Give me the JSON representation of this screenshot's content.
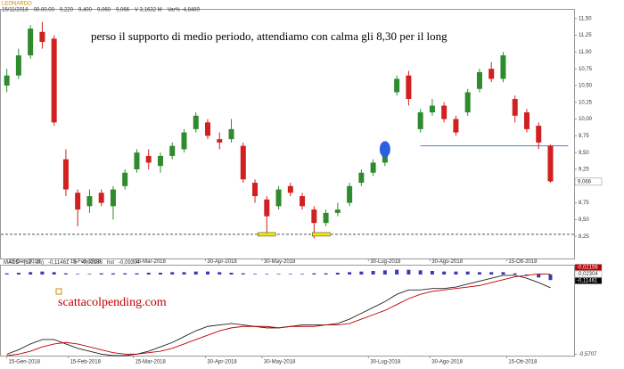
{
  "chart_data": {
    "type": "candlestick",
    "title": "LEONARDO",
    "header": [
      "15/11/2018",
      "00.00.00",
      "9,220",
      "9,400",
      "9,060",
      "9,066",
      "V 3,1632 M",
      "Var% -4,8489"
    ],
    "annotation": "perso il supporto di medio periodo, attendiamo con calma gli 8,30 per il long",
    "open": [
      10.5,
      10.65,
      10.95,
      11.3,
      11.2,
      9.4,
      8.9,
      8.7,
      8.9,
      8.7,
      9.0,
      9.25,
      9.45,
      9.3,
      9.45,
      9.55,
      9.85,
      9.95,
      9.7,
      9.7,
      9.6,
      9.05,
      8.8,
      8.7,
      9.0,
      8.85,
      8.65,
      8.45,
      8.6,
      8.75,
      9.05,
      9.2,
      9.35,
      10.4,
      10.65,
      9.85,
      10.1,
      10.2,
      10.0,
      10.1,
      10.45,
      10.75,
      10.6,
      10.3,
      10.1,
      9.9,
      9.6
    ],
    "close": [
      10.65,
      10.95,
      11.35,
      11.15,
      9.95,
      8.95,
      8.65,
      8.85,
      8.75,
      8.95,
      9.2,
      9.5,
      9.35,
      9.45,
      9.6,
      9.8,
      10.05,
      9.75,
      9.65,
      9.85,
      9.1,
      8.85,
      8.55,
      8.95,
      8.9,
      8.7,
      8.45,
      8.6,
      8.65,
      9.0,
      9.2,
      9.35,
      9.45,
      10.6,
      10.3,
      10.1,
      10.2,
      10.0,
      9.8,
      10.4,
      10.7,
      10.6,
      10.95,
      10.05,
      9.85,
      9.65,
      9.07
    ],
    "high": [
      10.75,
      11.05,
      11.4,
      11.45,
      11.25,
      9.55,
      8.95,
      8.95,
      8.95,
      9.0,
      9.25,
      9.55,
      9.55,
      9.5,
      9.65,
      9.85,
      10.1,
      10.0,
      9.8,
      10.0,
      9.65,
      9.1,
      8.85,
      9.0,
      9.05,
      8.9,
      8.7,
      8.65,
      8.75,
      9.05,
      9.25,
      9.4,
      9.55,
      10.65,
      10.72,
      10.15,
      10.3,
      10.25,
      10.05,
      10.45,
      10.75,
      10.85,
      11.0,
      10.35,
      10.15,
      9.95,
      9.62
    ],
    "low": [
      10.4,
      10.6,
      10.9,
      11.05,
      9.9,
      8.85,
      8.4,
      8.6,
      8.7,
      8.5,
      8.95,
      9.2,
      9.25,
      9.2,
      9.4,
      9.5,
      9.8,
      9.7,
      9.55,
      9.65,
      9.05,
      8.75,
      8.28,
      8.65,
      8.85,
      8.65,
      8.22,
      8.4,
      8.55,
      8.7,
      9.0,
      9.15,
      9.3,
      10.35,
      10.2,
      9.8,
      10.05,
      9.95,
      9.75,
      10.05,
      10.4,
      10.55,
      10.55,
      9.95,
      9.8,
      9.55,
      9.05
    ],
    "up_color": "#2e8b2e",
    "down_color": "#d02020",
    "xlim": [
      -0.5,
      48
    ],
    "xticks": [
      {
        "value": 0,
        "label": "15-Gen-2018"
      },
      {
        "value": 5.2,
        "label": "15-Feb-2018"
      },
      {
        "value": 10.7,
        "label": "15-Mar-2018"
      },
      {
        "value": 16.8,
        "label": "30-Apr-2018"
      },
      {
        "value": 21.6,
        "label": "30-May-2018"
      },
      {
        "value": 30.6,
        "label": "30-Lug-2018"
      },
      {
        "value": 35.8,
        "label": "30-Ago-2018"
      },
      {
        "value": 42.3,
        "label": "15-Ott-2018"
      }
    ],
    "ylim": [
      7.92,
      11.63
    ],
    "yticks": [
      {
        "value": 8.25,
        "label": "8,25"
      },
      {
        "value": 8.5,
        "label": "8,50"
      },
      {
        "value": 8.75,
        "label": "8,75"
      },
      {
        "value": 9.25,
        "label": "9,25"
      },
      {
        "value": 9.5,
        "label": "9,50"
      },
      {
        "value": 9.75,
        "label": "9,75"
      },
      {
        "value": 10,
        "label": "10,00"
      },
      {
        "value": 10.25,
        "label": "10,25"
      },
      {
        "value": 10.5,
        "label": "10,50"
      },
      {
        "value": 10.75,
        "label": "10,75"
      },
      {
        "value": 11,
        "label": "11,00"
      },
      {
        "value": 11.25,
        "label": "11,25"
      },
      {
        "value": 11.5,
        "label": "11,50"
      }
    ],
    "last_price": {
      "value": 9.066,
      "label": "9,066"
    },
    "support_line": {
      "value": 9.6,
      "from": 35,
      "to": 47.5,
      "color": "#4a7fd0"
    },
    "dashed_line": {
      "value": 8.28,
      "color": "#555555"
    },
    "ellipse": {
      "x": 32,
      "value": 9.55,
      "color": "#2b5fe0"
    },
    "yellow_marks": [
      {
        "x": 22,
        "value": 8.28
      },
      {
        "x": 26.6,
        "value": 8.28
      }
    ],
    "macd": {
      "header": [
        "MACD",
        "(12 , 26)",
        "-0,11461",
        "S",
        "-0,02156",
        "hst",
        "-0,09304"
      ],
      "value_boxes": [
        "-0,02156",
        "-0,02304",
        "-0,11461"
      ],
      "ylim": [
        -0.58,
        0
      ],
      "yticks": [
        {
          "value": -0.5707,
          "label": "-0,5707"
        }
      ],
      "hist_ylim": [
        -0.12,
        0.12
      ],
      "series": [
        {
          "name": "MACD",
          "color": "#222222",
          "values": [
            -0.57,
            -0.54,
            -0.5,
            -0.47,
            -0.47,
            -0.5,
            -0.53,
            -0.55,
            -0.57,
            -0.58,
            -0.58,
            -0.57,
            -0.55,
            -0.52,
            -0.49,
            -0.45,
            -0.41,
            -0.38,
            -0.37,
            -0.36,
            -0.37,
            -0.38,
            -0.39,
            -0.39,
            -0.38,
            -0.37,
            -0.37,
            -0.37,
            -0.36,
            -0.33,
            -0.29,
            -0.25,
            -0.21,
            -0.16,
            -0.13,
            -0.13,
            -0.12,
            -0.12,
            -0.11,
            -0.09,
            -0.07,
            -0.05,
            -0.03,
            -0.03,
            -0.05,
            -0.08,
            -0.115
          ]
        },
        {
          "name": "S",
          "color": "#c00000",
          "values": [
            -0.58,
            -0.57,
            -0.55,
            -0.52,
            -0.5,
            -0.49,
            -0.5,
            -0.52,
            -0.54,
            -0.56,
            -0.57,
            -0.57,
            -0.56,
            -0.55,
            -0.53,
            -0.5,
            -0.47,
            -0.44,
            -0.41,
            -0.39,
            -0.38,
            -0.38,
            -0.38,
            -0.39,
            -0.38,
            -0.38,
            -0.38,
            -0.37,
            -0.37,
            -0.36,
            -0.33,
            -0.3,
            -0.27,
            -0.23,
            -0.19,
            -0.16,
            -0.14,
            -0.13,
            -0.12,
            -0.11,
            -0.1,
            -0.08,
            -0.06,
            -0.04,
            -0.03,
            -0.02,
            -0.021
          ]
        }
      ],
      "hist": {
        "color": "#3a3ab0",
        "values": [
          0.02,
          0.03,
          0.04,
          0.05,
          0.04,
          0.02,
          0.01,
          0.01,
          0.02,
          0.02,
          0.02,
          0.02,
          0.03,
          0.03,
          0.04,
          0.04,
          0.05,
          0.05,
          0.04,
          0.03,
          0.02,
          0.01,
          0.01,
          0.01,
          0.01,
          0.01,
          0.02,
          0.02,
          0.03,
          0.04,
          0.05,
          0.06,
          0.07,
          0.08,
          0.08,
          0.07,
          0.06,
          0.05,
          0.05,
          0.05,
          0.04,
          0.04,
          0.04,
          0.02,
          -0.02,
          -0.05,
          -0.093
        ]
      }
    },
    "watermark": "scattacolpending.com"
  }
}
